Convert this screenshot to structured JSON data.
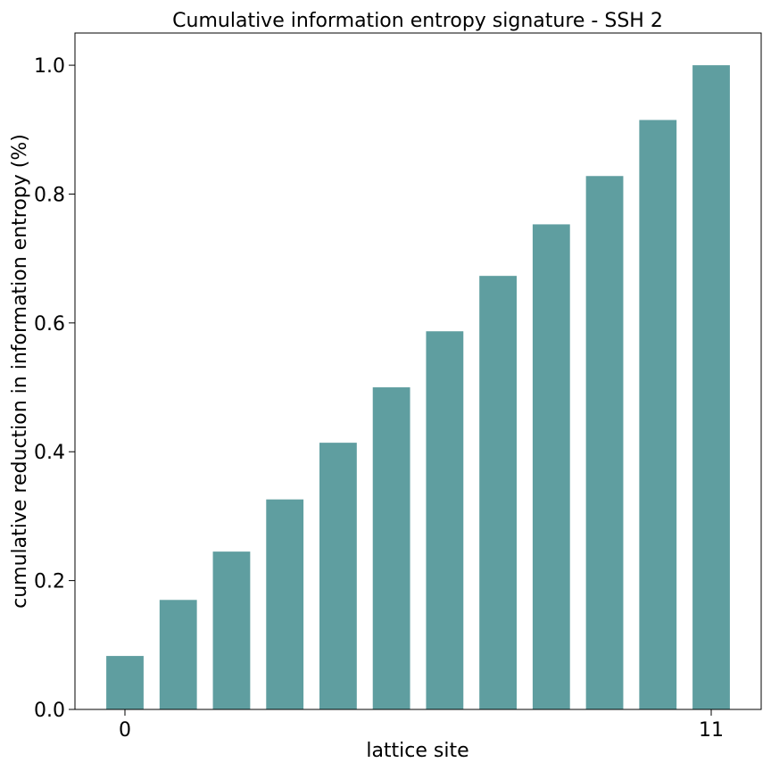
{
  "chart_data": {
    "type": "bar",
    "title": "Cumulative information entropy signature - SSH 2",
    "xlabel": "lattice site",
    "ylabel": "cumulative reduction in information entropy (%)",
    "categories": [
      "0",
      "1",
      "2",
      "3",
      "4",
      "5",
      "6",
      "7",
      "8",
      "9",
      "10",
      "11"
    ],
    "values": [
      0.083,
      0.17,
      0.245,
      0.326,
      0.414,
      0.5,
      0.587,
      0.673,
      0.753,
      0.828,
      0.915,
      1.0
    ],
    "x_ticks": [
      "0",
      "11"
    ],
    "y_ticks": [
      "0.0",
      "0.2",
      "0.4",
      "0.6",
      "0.8",
      "1.0"
    ],
    "ylim": [
      0,
      1.05
    ],
    "bar_color": "#5f9ea0",
    "grid": false,
    "legend": "none"
  }
}
